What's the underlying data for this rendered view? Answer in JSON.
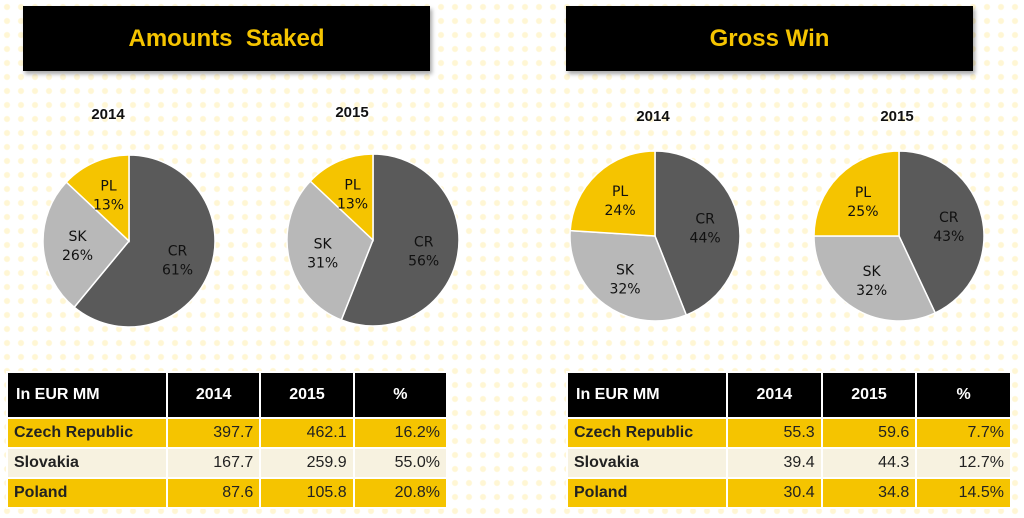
{
  "sections": [
    {
      "title": "Amounts  Staked",
      "table": {
        "headers": [
          "In EUR MM",
          "2014",
          "2015",
          "%"
        ],
        "rows": [
          [
            "Czech Republic",
            "397.7",
            "462.1",
            "16.2%"
          ],
          [
            "Slovakia",
            "167.7",
            "259.9",
            "55.0%"
          ],
          [
            "Poland",
            "87.6",
            "105.8",
            "20.8%"
          ]
        ]
      }
    },
    {
      "title": "Gross Win",
      "table": {
        "headers": [
          "In EUR MM",
          "2014",
          "2015",
          "%"
        ],
        "rows": [
          [
            "Czech Republic",
            "55.3",
            "59.6",
            "7.7%"
          ],
          [
            "Slovakia",
            "39.4",
            "44.3",
            "12.7%"
          ],
          [
            "Poland",
            "30.4",
            "34.8",
            "14.5%"
          ]
        ]
      }
    }
  ],
  "colors": {
    "CR": "#5a5a5a",
    "SK": "#b8b8b8",
    "PL": "#f5c400",
    "banner_bg": "#000000",
    "banner_text": "#f5c400"
  },
  "chart_data": [
    {
      "type": "pie",
      "title": "2014",
      "categories": [
        "CR",
        "SK",
        "PL"
      ],
      "values": [
        61,
        26,
        13
      ],
      "labels": [
        "61%",
        "26%",
        "13%"
      ]
    },
    {
      "type": "pie",
      "title": "2015",
      "categories": [
        "CR",
        "SK",
        "PL"
      ],
      "values": [
        56,
        31,
        13
      ],
      "labels": [
        "56%",
        "31%",
        "13%"
      ]
    },
    {
      "type": "pie",
      "title": "2014",
      "categories": [
        "CR",
        "SK",
        "PL"
      ],
      "values": [
        44,
        32,
        24
      ],
      "labels": [
        "44%",
        "32%",
        "24%"
      ]
    },
    {
      "type": "pie",
      "title": "2015",
      "categories": [
        "CR",
        "SK",
        "PL"
      ],
      "values": [
        43,
        32,
        25
      ],
      "labels": [
        "43%",
        "32%",
        "25%"
      ]
    }
  ]
}
